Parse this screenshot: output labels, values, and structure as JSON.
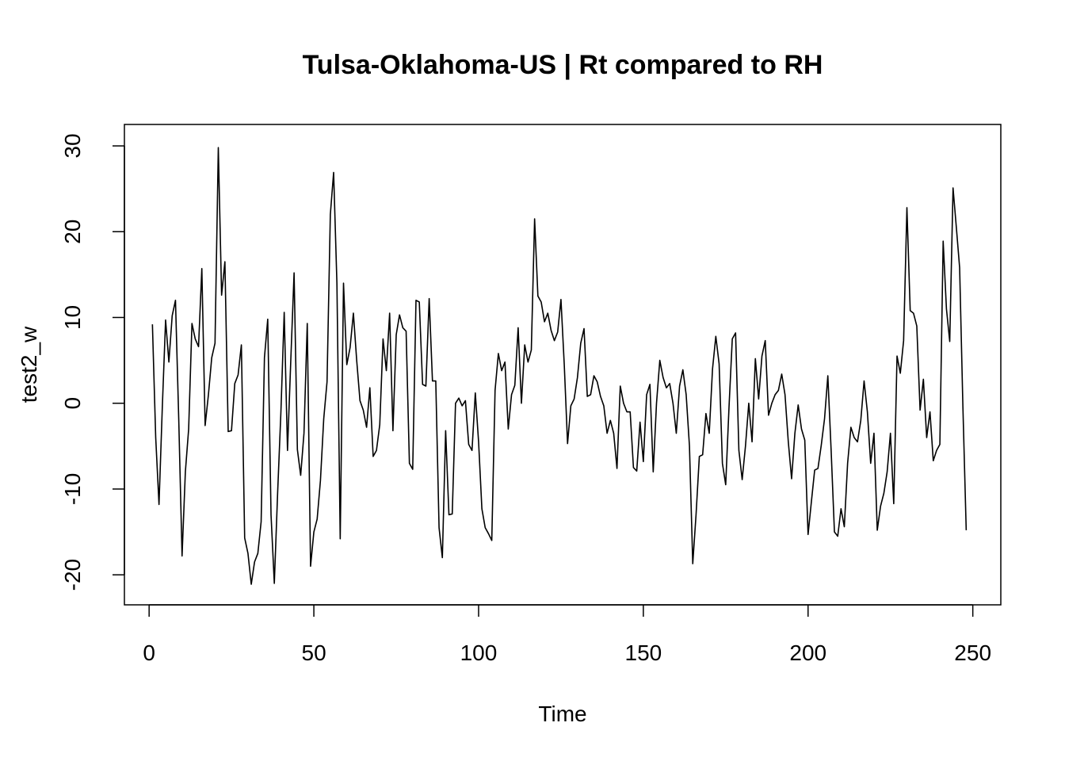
{
  "chart_data": {
    "type": "line",
    "title": "Tulsa-Oklahoma-US | Rt compared to RH",
    "xlabel": "Time",
    "ylabel": "test2_w",
    "xlim": [
      -7.5,
      258.5
    ],
    "ylim": [
      -23.5,
      32.5
    ],
    "xticks": [
      0,
      50,
      100,
      150,
      200,
      250
    ],
    "yticks": [
      -20,
      -10,
      0,
      10,
      20,
      30
    ],
    "xtick_labels": [
      "0",
      "50",
      "100",
      "150",
      "200",
      "250"
    ],
    "ytick_labels": [
      "-20",
      "-10",
      "0",
      "10",
      "20",
      "30"
    ],
    "grid": false,
    "series": [
      {
        "color": "#000000",
        "x": [
          1,
          2,
          3,
          4,
          5,
          6,
          7,
          8,
          9,
          10,
          11,
          12,
          13,
          14,
          15,
          16,
          17,
          18,
          19,
          20,
          21,
          22,
          23,
          24,
          25,
          26,
          27,
          28,
          29,
          30,
          31,
          32,
          33,
          34,
          35,
          36,
          37,
          38,
          39,
          40,
          41,
          42,
          43,
          44,
          45,
          46,
          47,
          48,
          49,
          50,
          51,
          52,
          53,
          54,
          55,
          56,
          57,
          58,
          59,
          60,
          61,
          62,
          63,
          64,
          65,
          66,
          67,
          68,
          69,
          70,
          71,
          72,
          73,
          74,
          75,
          76,
          77,
          78,
          79,
          80,
          81,
          82,
          83,
          84,
          85,
          86,
          87,
          88,
          89,
          90,
          91,
          92,
          93,
          94,
          95,
          96,
          97,
          98,
          99,
          100,
          101,
          102,
          103,
          104,
          105,
          106,
          107,
          108,
          109,
          110,
          111,
          112,
          113,
          114,
          115,
          116,
          117,
          118,
          119,
          120,
          121,
          122,
          123,
          124,
          125,
          126,
          127,
          128,
          129,
          130,
          131,
          132,
          133,
          134,
          135,
          136,
          137,
          138,
          139,
          140,
          141,
          142,
          143,
          144,
          145,
          146,
          147,
          148,
          149,
          150,
          151,
          152,
          153,
          154,
          155,
          156,
          157,
          158,
          159,
          160,
          161,
          162,
          163,
          164,
          165,
          166,
          167,
          168,
          169,
          170,
          171,
          172,
          173,
          174,
          175,
          176,
          177,
          178,
          179,
          180,
          181,
          182,
          183,
          184,
          185,
          186,
          187,
          188,
          189,
          190,
          191,
          192,
          193,
          194,
          195,
          196,
          197,
          198,
          199,
          200,
          201,
          202,
          203,
          204,
          205,
          206,
          207,
          208,
          209,
          210,
          211,
          212,
          213,
          214,
          215,
          216,
          217,
          218,
          219,
          220,
          221,
          222,
          223,
          224,
          225,
          226,
          227,
          228,
          229,
          230,
          231,
          232,
          233,
          234,
          235,
          236,
          237,
          238,
          239,
          240,
          241,
          242,
          243,
          244,
          245,
          246,
          247,
          248
        ],
        "values": [
          9.2,
          -4.0,
          -11.8,
          -0.5,
          9.7,
          4.8,
          10.2,
          12.0,
          -2.0,
          -17.8,
          -8.0,
          -3.0,
          9.3,
          7.5,
          6.6,
          15.7,
          -2.6,
          1.0,
          5.3,
          7.0,
          29.8,
          12.6,
          16.5,
          -3.3,
          -3.2,
          2.3,
          3.3,
          6.8,
          -15.7,
          -17.5,
          -21.1,
          -18.5,
          -17.5,
          -13.8,
          5.3,
          9.8,
          -13.0,
          -21.0,
          -10.5,
          -1.0,
          10.6,
          -5.5,
          5.0,
          15.2,
          -5.4,
          -8.4,
          -3.5,
          9.3,
          -19.0,
          -15.0,
          -13.5,
          -9.0,
          -1.8,
          2.5,
          22.0,
          26.9,
          14.0,
          -15.8,
          14.0,
          4.5,
          6.5,
          10.5,
          5.0,
          0.3,
          -0.8,
          -2.8,
          1.8,
          -6.2,
          -5.5,
          -2.5,
          7.5,
          3.8,
          10.5,
          -3.2,
          8.0,
          10.3,
          8.8,
          8.4,
          -7.0,
          -7.7,
          12.0,
          11.8,
          2.2,
          2.0,
          12.2,
          2.6,
          2.6,
          -14.5,
          -18.0,
          -3.2,
          -13.0,
          -12.9,
          0.0,
          0.6,
          -0.3,
          0.3,
          -4.8,
          -5.5,
          1.2,
          -4.5,
          -12.3,
          -14.5,
          -15.2,
          -16.0,
          1.5,
          5.8,
          3.8,
          4.8,
          -3.0,
          1.0,
          2.1,
          8.8,
          0.0,
          6.8,
          4.8,
          6.2,
          21.5,
          12.5,
          11.8,
          9.5,
          10.5,
          8.5,
          7.3,
          8.3,
          12.1,
          4.5,
          -4.7,
          -0.3,
          0.5,
          3.0,
          7.0,
          8.7,
          0.8,
          1.0,
          3.2,
          2.5,
          0.8,
          -0.3,
          -3.5,
          -2.0,
          -3.5,
          -7.6,
          2.0,
          0.0,
          -1.0,
          -1.0,
          -7.5,
          -7.9,
          -2.2,
          -6.8,
          1.0,
          2.2,
          -8.0,
          0.0,
          5.0,
          3.0,
          1.8,
          2.3,
          0.0,
          -3.5,
          2.0,
          3.9,
          1.0,
          -5.0,
          -18.7,
          -13.0,
          -6.2,
          -6.0,
          -1.2,
          -3.5,
          4.0,
          7.8,
          4.6,
          -7.0,
          -9.5,
          -0.5,
          7.5,
          8.2,
          -5.5,
          -8.9,
          -5.0,
          0.0,
          -4.5,
          5.2,
          0.5,
          5.5,
          7.3,
          -1.4,
          0.0,
          1.0,
          1.5,
          3.4,
          1.0,
          -4.5,
          -8.8,
          -3.5,
          -0.2,
          -3.0,
          -4.3,
          -15.3,
          -11.5,
          -7.8,
          -7.6,
          -4.9,
          -1.8,
          3.2,
          -5.5,
          -15.0,
          -15.5,
          -12.3,
          -14.4,
          -7.0,
          -2.8,
          -4.0,
          -4.5,
          -2.0,
          2.6,
          -1.0,
          -7.0,
          -3.5,
          -14.8,
          -12.0,
          -10.5,
          -8.0,
          -3.5,
          -11.7,
          5.5,
          3.5,
          7.3,
          22.8,
          10.8,
          10.5,
          9.0,
          -0.8,
          2.8,
          -4.0,
          -1.0,
          -6.7,
          -5.5,
          -4.8,
          18.9,
          11.0,
          7.2,
          25.1,
          20.5,
          15.8,
          -0.5,
          -14.8
        ]
      }
    ]
  }
}
